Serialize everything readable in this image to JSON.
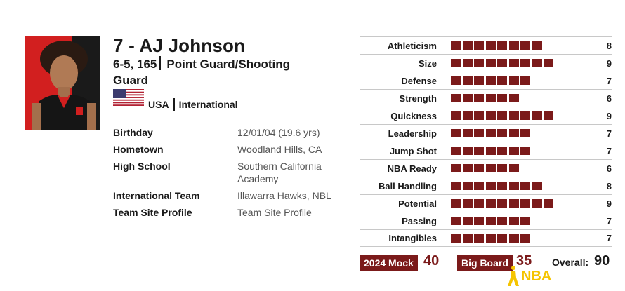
{
  "player": {
    "name": "7 - AJ Johnson",
    "size": "6-5, 165",
    "position": "Point Guard/Shooting Guard",
    "country": "USA",
    "category": "International"
  },
  "bio": [
    {
      "label": "Birthday",
      "value": "12/01/04 (19.6 yrs)"
    },
    {
      "label": "Hometown",
      "value": "Woodland Hills, CA"
    },
    {
      "label": "High School",
      "value": "Southern California Academy"
    },
    {
      "label": "International Team",
      "value": "Illawarra Hawks, NBL"
    },
    {
      "label": "Team Site Profile",
      "value": "Team Site Profile"
    }
  ],
  "ratings": [
    {
      "label": "Athleticism",
      "value": 8
    },
    {
      "label": "Size",
      "value": 9
    },
    {
      "label": "Defense",
      "value": 7
    },
    {
      "label": "Strength",
      "value": 6
    },
    {
      "label": "Quickness",
      "value": 9
    },
    {
      "label": "Leadership",
      "value": 7
    },
    {
      "label": "Jump Shot",
      "value": 7
    },
    {
      "label": "NBA Ready",
      "value": 6
    },
    {
      "label": "Ball Handling",
      "value": 8
    },
    {
      "label": "Potential",
      "value": 9
    },
    {
      "label": "Passing",
      "value": 7
    },
    {
      "label": "Intangibles",
      "value": 7
    }
  ],
  "summary": {
    "mock_label": "2024 Mock",
    "mock_value": "40",
    "bigboard_label": "Big Board",
    "bigboard_value": "35",
    "overall_label": "Overall:",
    "overall_value": "90"
  },
  "logo_text": "NBA",
  "colors": {
    "accent": "#7b1a1a",
    "logo": "#f5c400"
  }
}
